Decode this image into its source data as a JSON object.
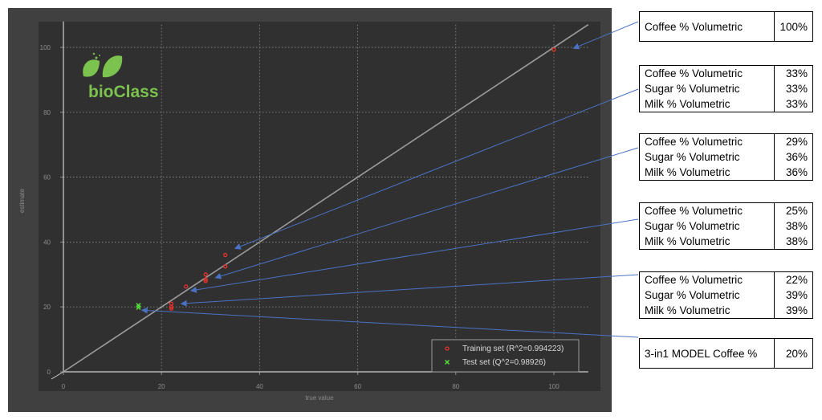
{
  "chart_data": {
    "type": "scatter",
    "xlabel": "true value",
    "ylabel": "estimate",
    "xlim": [
      0,
      107
    ],
    "ylim": [
      0,
      107
    ],
    "xticks": [
      0,
      20,
      40,
      60,
      80,
      100
    ],
    "yticks": [
      0,
      20,
      40,
      60,
      80,
      100
    ],
    "grid": true,
    "legend_position": "bottom-right",
    "series": [
      {
        "name": "Training set (R^2=0.994223)",
        "marker": "circle",
        "color": "#e8322c",
        "points": [
          [
            100,
            99.3
          ],
          [
            33,
            36
          ],
          [
            33,
            32.5
          ],
          [
            29,
            30
          ],
          [
            29,
            28.5
          ],
          [
            29,
            28
          ],
          [
            25,
            26.3
          ],
          [
            22,
            21
          ],
          [
            22,
            20
          ],
          [
            22,
            19.5
          ]
        ]
      },
      {
        "name": "Test set (Q^2=0.98926)",
        "marker": "x",
        "color": "#55e03a",
        "points": [
          [
            15.3,
            20.5
          ],
          [
            15.3,
            19.8
          ]
        ]
      }
    ],
    "reference_line": [
      [
        0,
        0
      ],
      [
        107,
        107
      ]
    ]
  },
  "logo": {
    "text": "bioClass"
  },
  "annotations": [
    {
      "rows": [
        [
          "Coffee % Volumetric",
          "100%"
        ]
      ],
      "target": [
        104,
        99.7
      ]
    },
    {
      "rows": [
        [
          "Coffee % Volumetric",
          "33%"
        ],
        [
          "Sugar % Volumetric",
          "33%"
        ],
        [
          "Milk % Volumetric",
          "33%"
        ]
      ],
      "target": [
        35,
        38
      ]
    },
    {
      "rows": [
        [
          "Coffee % Volumetric",
          "29%"
        ],
        [
          "Sugar % Volumetric",
          "36%"
        ],
        [
          "Milk % Volumetric",
          "36%"
        ]
      ],
      "target": [
        31,
        29
      ]
    },
    {
      "rows": [
        [
          "Coffee % Volumetric",
          "25%"
        ],
        [
          "Sugar % Volumetric",
          "38%"
        ],
        [
          "Milk % Volumetric",
          "38%"
        ]
      ],
      "target": [
        26,
        25
      ]
    },
    {
      "rows": [
        [
          "Coffee % Volumetric",
          "22%"
        ],
        [
          "Sugar % Volumetric",
          "39%"
        ],
        [
          "Milk % Volumetric",
          "39%"
        ]
      ],
      "target": [
        24,
        21
      ]
    },
    {
      "rows": [
        [
          "3-in1 MODEL Coffee %",
          "20%"
        ]
      ],
      "target": [
        16,
        19
      ]
    }
  ],
  "colors": {
    "plot_bg": "#303030",
    "frame_bg": "#404040",
    "grid": "#9a9a9a",
    "axis_text": "#8c8c8c",
    "diagonal": "#9c9c9c",
    "arrow": "#4a72c4",
    "logo_green": "#7cc24e"
  }
}
